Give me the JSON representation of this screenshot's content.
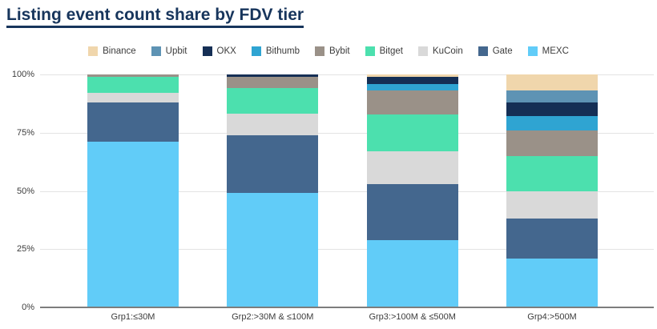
{
  "title": "Listing event count share by FDV tier",
  "colors": {
    "title": "#17355c",
    "axis_text": "#3c3c3c",
    "gridline": "#e3e3e3",
    "axis_line": "#7d7d7d",
    "background": "#ffffff"
  },
  "chart_data": {
    "type": "bar",
    "stacked": true,
    "unit": "percent",
    "title": "Listing event count share by FDV tier",
    "xlabel": "",
    "ylabel": "",
    "ylim": [
      0,
      100
    ],
    "y_ticks": [
      0,
      25,
      50,
      75,
      100
    ],
    "y_tick_labels": [
      "0%",
      "25%",
      "50%",
      "75%",
      "100%"
    ],
    "grid": true,
    "legend_position": "top",
    "categories": [
      "Grp1:≤30M",
      "Grp2:>30M & ≤100M",
      "Grp3:>100M & ≤500M",
      "Grp4:>500M"
    ],
    "stack_order_bottom_to_top": [
      "MEXC",
      "Gate",
      "KuCoin",
      "Bitget",
      "Bybit",
      "Bithumb",
      "OKX",
      "Upbit",
      "Binance"
    ],
    "series": [
      {
        "name": "Binance",
        "color": "#f0d6ac",
        "values": [
          0,
          0,
          1,
          7
        ]
      },
      {
        "name": "Upbit",
        "color": "#5e93b4",
        "values": [
          0,
          0,
          0,
          5
        ]
      },
      {
        "name": "OKX",
        "color": "#152f55",
        "values": [
          0,
          1,
          3,
          6
        ]
      },
      {
        "name": "Bithumb",
        "color": "#2fa4d2",
        "values": [
          0,
          0,
          3,
          6
        ]
      },
      {
        "name": "Bybit",
        "color": "#9a9188",
        "values": [
          1,
          5,
          10,
          11
        ]
      },
      {
        "name": "Bitget",
        "color": "#4ce0ae",
        "values": [
          7,
          11,
          16,
          15
        ]
      },
      {
        "name": "KuCoin",
        "color": "#d9d9d9",
        "values": [
          4,
          9,
          14,
          12
        ]
      },
      {
        "name": "Gate",
        "color": "#44678e",
        "values": [
          17,
          25,
          24,
          17
        ]
      },
      {
        "name": "MEXC",
        "color": "#61ccf8",
        "values": [
          71,
          49,
          29,
          21
        ]
      }
    ]
  }
}
